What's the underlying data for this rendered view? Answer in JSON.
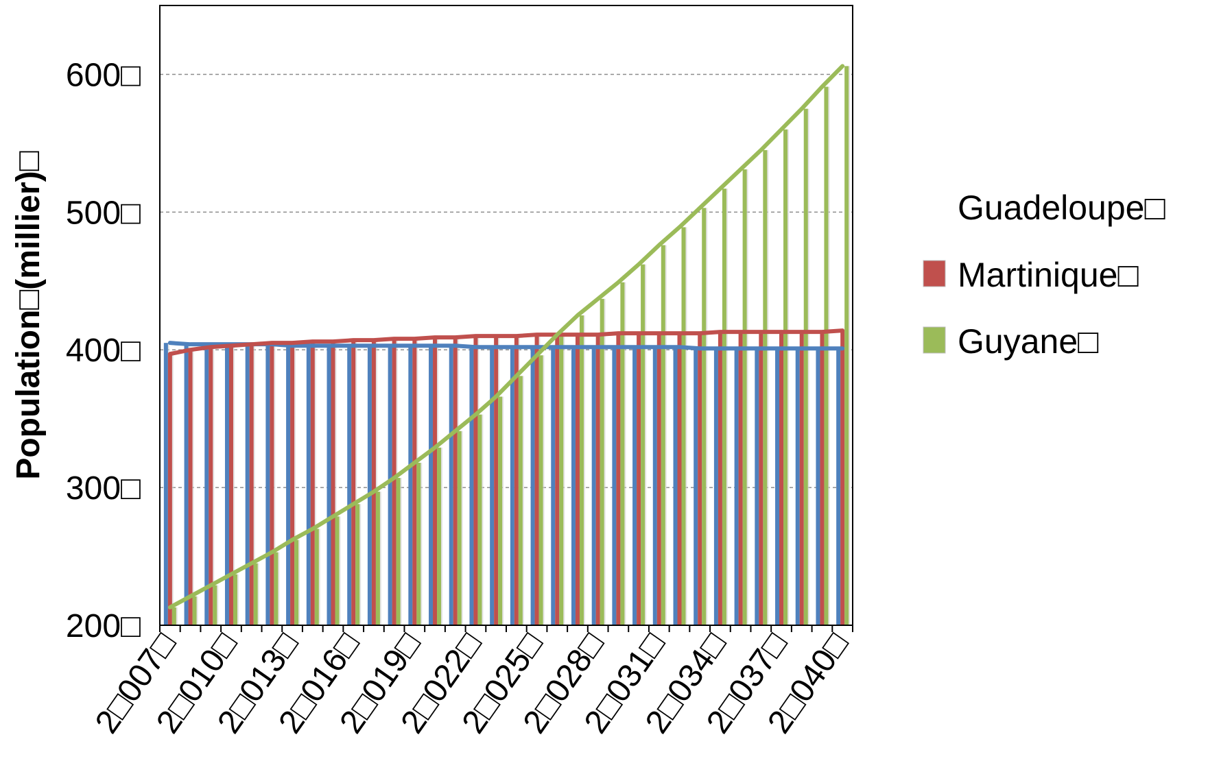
{
  "chart_data": {
    "type": "bar",
    "title": "",
    "xlabel": "",
    "ylabel": "Population□(millier)□",
    "ylim": [
      200,
      650
    ],
    "yticks": [
      200,
      300,
      400,
      500,
      600
    ],
    "ytick_labels": [
      "200□",
      "300□",
      "400□",
      "500□",
      "600□"
    ],
    "xtick_labels": [
      "2□007□",
      "2□010□",
      "2□013□",
      "2□016□",
      "2□019□",
      "2□022□",
      "2□025□",
      "2□028□",
      "2□031□",
      "2□034□",
      "2□037□",
      "2□040□"
    ],
    "grid": "horizontal dashed",
    "legend_position": "right",
    "categories": [
      2007,
      2008,
      2009,
      2010,
      2011,
      2012,
      2013,
      2014,
      2015,
      2016,
      2017,
      2018,
      2019,
      2020,
      2021,
      2022,
      2023,
      2024,
      2025,
      2026,
      2027,
      2028,
      2029,
      2030,
      2031,
      2032,
      2033,
      2034,
      2035,
      2036,
      2037,
      2038,
      2039,
      2040
    ],
    "series": [
      {
        "name": "Guadeloupe□",
        "color": "#4f81bd",
        "values": [
          405,
          404,
          404,
          404,
          404,
          404,
          403,
          403,
          403,
          403,
          403,
          403,
          403,
          403,
          403,
          402,
          402,
          402,
          402,
          402,
          402,
          402,
          402,
          402,
          402,
          402,
          401,
          401,
          401,
          401,
          401,
          401,
          401,
          401
        ]
      },
      {
        "name": "Martinique□",
        "color": "#c0504d",
        "values": [
          397,
          400,
          402,
          403,
          404,
          405,
          405,
          406,
          406,
          407,
          407,
          408,
          408,
          409,
          409,
          410,
          410,
          410,
          411,
          411,
          411,
          411,
          412,
          412,
          412,
          412,
          412,
          413,
          413,
          413,
          413,
          413,
          413,
          414
        ]
      },
      {
        "name": "Guyane□",
        "color": "#9bbb59",
        "values": [
          213,
          221,
          229,
          237,
          245,
          253,
          262,
          270,
          279,
          288,
          297,
          307,
          318,
          329,
          341,
          353,
          366,
          381,
          396,
          411,
          425,
          437,
          449,
          462,
          476,
          489,
          503,
          517,
          531,
          545,
          560,
          575,
          591,
          606
        ]
      }
    ]
  }
}
